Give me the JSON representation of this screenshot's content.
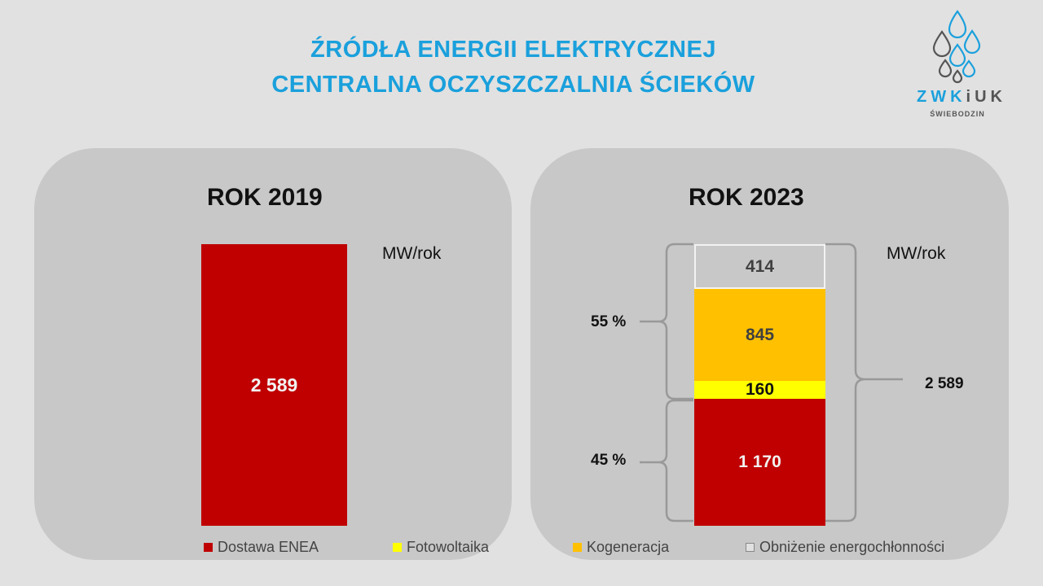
{
  "header": {
    "line1": "ŹRÓDŁA ENERGII ELEKTRYCZNEJ",
    "line2": "CENTRALNA OCZYSZCZALNIA ŚCIEKÓW"
  },
  "logo": {
    "name_blue": "ZWK",
    "name_gray": "iUK",
    "sub": "ŚWIEBODZIN"
  },
  "chart_data": [
    {
      "type": "bar",
      "title": "ROK 2019",
      "unit": "MW/rok",
      "categories": [
        "2019"
      ],
      "series": [
        {
          "name": "Dostawa ENEA",
          "value": 2589,
          "label": "2 589",
          "color": "#c00000"
        }
      ]
    },
    {
      "type": "bar",
      "stacked": true,
      "title": "ROK 2023",
      "unit": "MW/rok",
      "categories": [
        "2023"
      ],
      "series": [
        {
          "name": "Dostawa ENEA",
          "value": 1170,
          "label": "1 170",
          "color": "#c00000"
        },
        {
          "name": "Fotowoltaika",
          "value": 160,
          "label": "160",
          "color": "#ffff00"
        },
        {
          "name": "Kogeneracja",
          "value": 845,
          "label": "845",
          "color": "#ffc000"
        },
        {
          "name": "Obniżenie energochłonności",
          "value": 414,
          "label": "414",
          "color": "#c8c8c8"
        }
      ],
      "annotations": {
        "pct_upper": "55 %",
        "pct_lower": "45 %",
        "total": "2 589"
      }
    }
  ],
  "legend": [
    {
      "label": "Dostawa ENEA",
      "color": "#c00000"
    },
    {
      "label": "Fotowoltaika",
      "color": "#ffff00"
    },
    {
      "label": "Kogeneracja",
      "color": "#ffc000"
    },
    {
      "label": "Obniżenie energochłonności",
      "color": "#c8c8c8"
    }
  ]
}
